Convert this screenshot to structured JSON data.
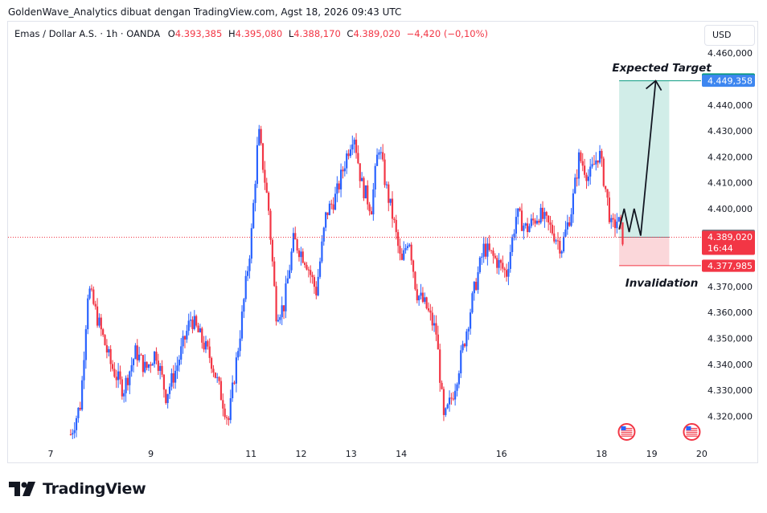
{
  "header": {
    "text": "GoldenWave_Analytics dibuat dengan TradingView.com, Agst 18, 2026 09:43 UTC"
  },
  "symbol": {
    "name": "Emas / Dollar A.S. · 1h · OANDA",
    "o_label": "O",
    "o_value": "4.393,385",
    "h_label": "H",
    "h_value": "4.395,080",
    "l_label": "L",
    "l_value": "4.388,170",
    "c_label": "C",
    "c_value": "4.389,020",
    "change": "−4,420 (−0,10%)"
  },
  "currency_button": "USD",
  "brand": "TradingView",
  "chart_data": {
    "type": "candlestick",
    "instrument": "XAUUSD",
    "timeframe": "1h",
    "ylim": [
      4305000,
      4465000
    ],
    "xlim": [
      7,
      20
    ],
    "y_ticks": [
      {
        "value": 4460000,
        "label": "4.460,000"
      },
      {
        "value": 4440000,
        "label": "4.440,000"
      },
      {
        "value": 4430000,
        "label": "4.430,000"
      },
      {
        "value": 4420000,
        "label": "4.420,000"
      },
      {
        "value": 4410000,
        "label": "4.410,000"
      },
      {
        "value": 4400000,
        "label": "4.400,000"
      },
      {
        "value": 4370000,
        "label": "4.370,000"
      },
      {
        "value": 4360000,
        "label": "4.360,000"
      },
      {
        "value": 4350000,
        "label": "4.350,000"
      },
      {
        "value": 4340000,
        "label": "4.340,000"
      },
      {
        "value": 4330000,
        "label": "4.330,000"
      },
      {
        "value": 4320000,
        "label": "4.320,000"
      }
    ],
    "x_ticks": [
      {
        "value": 7,
        "label": "7"
      },
      {
        "value": 9,
        "label": "9"
      },
      {
        "value": 11,
        "label": "11"
      },
      {
        "value": 12,
        "label": "12"
      },
      {
        "value": 13,
        "label": "13"
      },
      {
        "value": 14,
        "label": "14"
      },
      {
        "value": 16,
        "label": "16"
      },
      {
        "value": 18,
        "label": "18"
      },
      {
        "value": 19,
        "label": "19"
      },
      {
        "value": 20,
        "label": "20"
      }
    ],
    "guide_points": [
      {
        "x": 7.4,
        "y": 4313000
      },
      {
        "x": 7.6,
        "y": 4325000
      },
      {
        "x": 7.75,
        "y": 4370000
      },
      {
        "x": 8.2,
        "y": 4340000
      },
      {
        "x": 8.45,
        "y": 4330000
      },
      {
        "x": 8.7,
        "y": 4345000
      },
      {
        "x": 8.9,
        "y": 4338000
      },
      {
        "x": 9.1,
        "y": 4345000
      },
      {
        "x": 9.3,
        "y": 4328000
      },
      {
        "x": 9.5,
        "y": 4338000
      },
      {
        "x": 9.8,
        "y": 4358000
      },
      {
        "x": 10.2,
        "y": 4342000
      },
      {
        "x": 10.55,
        "y": 4318000
      },
      {
        "x": 10.8,
        "y": 4355000
      },
      {
        "x": 11.0,
        "y": 4388000
      },
      {
        "x": 11.15,
        "y": 4430000
      },
      {
        "x": 11.35,
        "y": 4400000
      },
      {
        "x": 11.5,
        "y": 4360000
      },
      {
        "x": 11.65,
        "y": 4362000
      },
      {
        "x": 11.85,
        "y": 4388000
      },
      {
        "x": 12.1,
        "y": 4380000
      },
      {
        "x": 12.3,
        "y": 4368000
      },
      {
        "x": 12.5,
        "y": 4398000
      },
      {
        "x": 12.7,
        "y": 4405000
      },
      {
        "x": 12.9,
        "y": 4420000
      },
      {
        "x": 13.05,
        "y": 4430000
      },
      {
        "x": 13.2,
        "y": 4410000
      },
      {
        "x": 13.4,
        "y": 4400000
      },
      {
        "x": 13.55,
        "y": 4425000
      },
      {
        "x": 13.7,
        "y": 4408000
      },
      {
        "x": 13.85,
        "y": 4395000
      },
      {
        "x": 14.0,
        "y": 4378000
      },
      {
        "x": 14.15,
        "y": 4390000
      },
      {
        "x": 14.3,
        "y": 4368000
      },
      {
        "x": 14.5,
        "y": 4362000
      },
      {
        "x": 14.7,
        "y": 4352000
      },
      {
        "x": 14.85,
        "y": 4318000
      },
      {
        "x": 15.05,
        "y": 4330000
      },
      {
        "x": 15.25,
        "y": 4348000
      },
      {
        "x": 15.45,
        "y": 4368000
      },
      {
        "x": 15.65,
        "y": 4385000
      },
      {
        "x": 15.9,
        "y": 4380000
      },
      {
        "x": 16.1,
        "y": 4375000
      },
      {
        "x": 16.3,
        "y": 4398000
      },
      {
        "x": 16.5,
        "y": 4392000
      },
      {
        "x": 16.75,
        "y": 4398000
      },
      {
        "x": 17.0,
        "y": 4392000
      },
      {
        "x": 17.2,
        "y": 4385000
      },
      {
        "x": 17.4,
        "y": 4400000
      },
      {
        "x": 17.55,
        "y": 4420000
      },
      {
        "x": 17.75,
        "y": 4412000
      },
      {
        "x": 17.95,
        "y": 4422000
      },
      {
        "x": 18.1,
        "y": 4405000
      },
      {
        "x": 18.2,
        "y": 4392000
      },
      {
        "x": 18.32,
        "y": 4396000
      },
      {
        "x": 18.42,
        "y": 4389020
      }
    ],
    "last_close": 4389020,
    "price_labels": [
      {
        "value": 4449871,
        "label": "4.449,871",
        "color": "#089981"
      },
      {
        "value": 4449358,
        "label": "4.449,358",
        "color": "#3d86f0"
      },
      {
        "value": 4389643,
        "label": "4.389,643",
        "color": "#787b86"
      },
      {
        "value": 4389020,
        "label": "4.389,020",
        "sub": "16:44",
        "color": "#f23645"
      },
      {
        "value": 4378046,
        "label": "4.378,046",
        "color": "#f7525f"
      },
      {
        "value": 4377985,
        "label": "4.377,985",
        "color": "#f23645"
      }
    ],
    "position": {
      "x_start": 18.35,
      "x_end": 19.35,
      "entry": 4389020,
      "target": 4449358,
      "stop": 4378046,
      "target_color": "#b9e3dc",
      "stop_color": "#fbd3d6"
    },
    "projection_path": [
      {
        "x": 18.35,
        "y": 4392000
      },
      {
        "x": 18.45,
        "y": 4400000
      },
      {
        "x": 18.55,
        "y": 4391000
      },
      {
        "x": 18.65,
        "y": 4400000
      },
      {
        "x": 18.78,
        "y": 4389600
      },
      {
        "x": 19.08,
        "y": 4449358
      }
    ],
    "annotations": [
      {
        "text": "Expected Target",
        "x": 19.2,
        "y": 4453000
      },
      {
        "text": "Invalidation",
        "x": 19.2,
        "y": 4370000
      }
    ],
    "event_flag_x": [
      18.5,
      19.8
    ]
  }
}
